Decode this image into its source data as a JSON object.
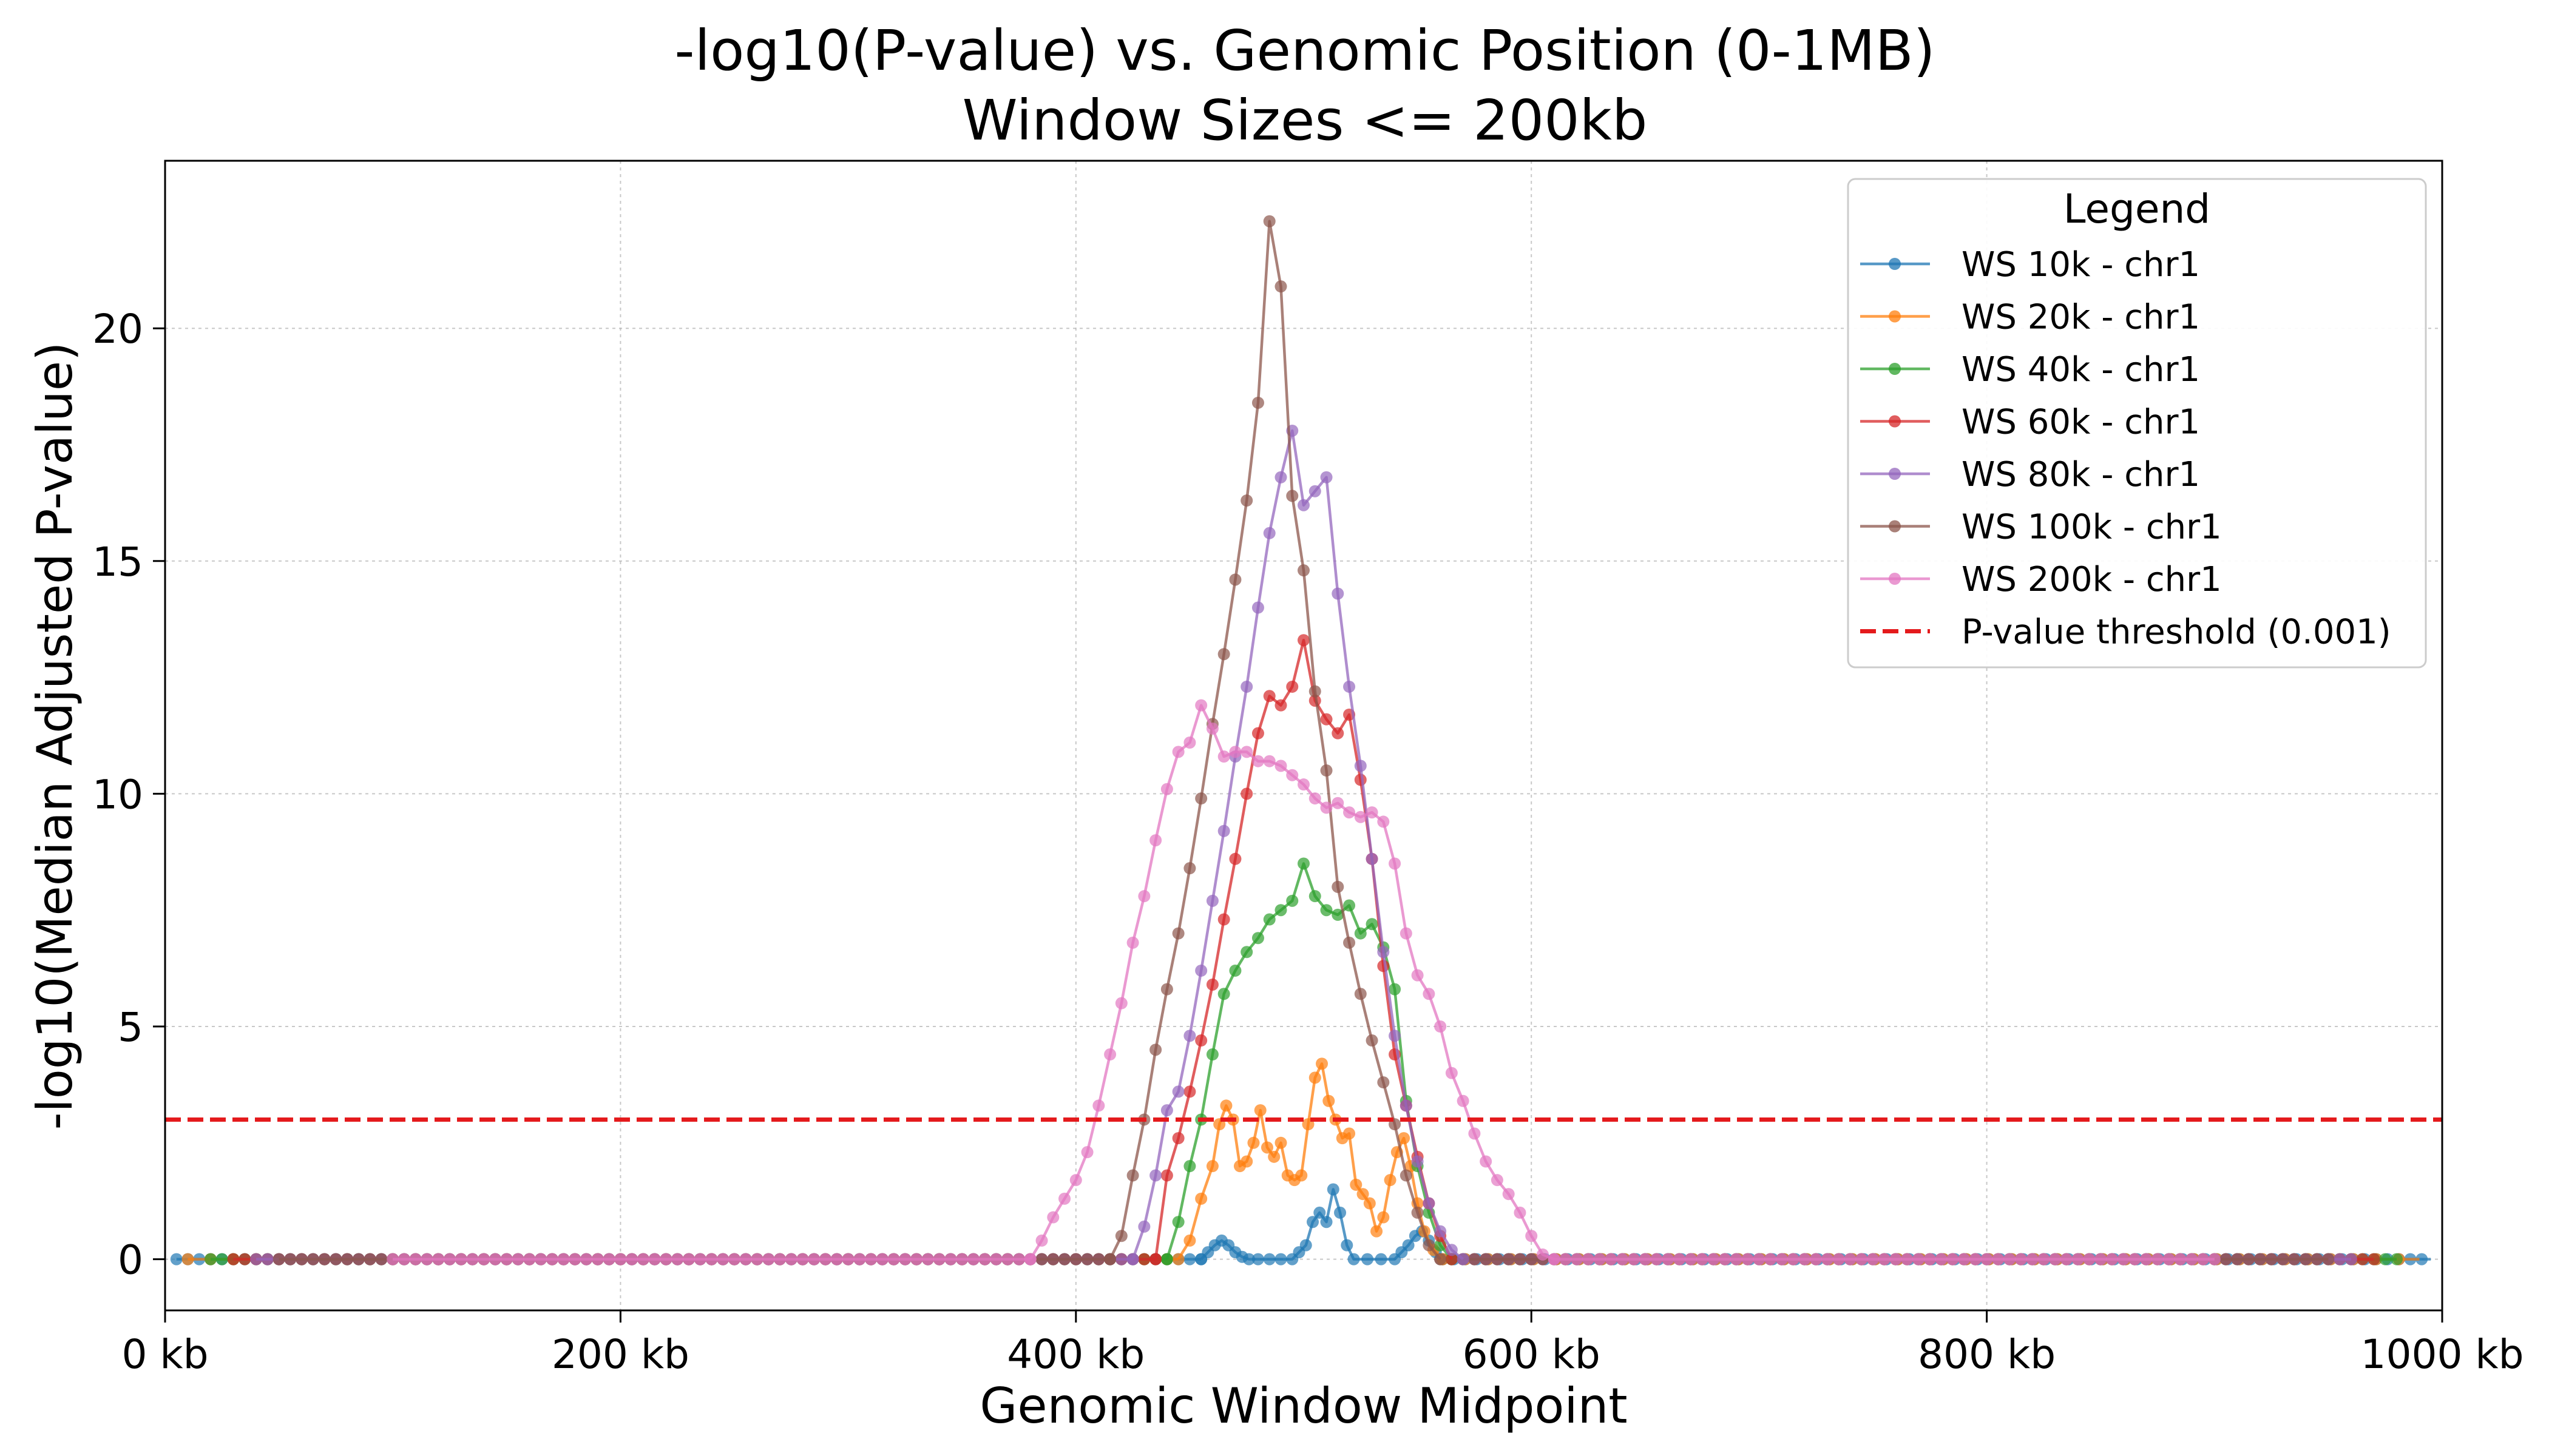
{
  "chart_data": {
    "type": "line",
    "title": "-log10(P-value) vs. Genomic Position (0-1MB)",
    "subtitle": "Window Sizes <= 200kb",
    "xlabel": "Genomic Window Midpoint",
    "ylabel": "-log10(Median Adjusted P-value)",
    "xlim": [
      0,
      1000
    ],
    "ylim": [
      -1.1,
      23.6
    ],
    "x_unit": "kb",
    "x_ticks": [
      0,
      200,
      400,
      600,
      800,
      1000
    ],
    "x_tick_labels": [
      "0 kb",
      "200 kb",
      "400 kb",
      "600 kb",
      "800 kb",
      "1000 kb"
    ],
    "y_ticks": [
      0,
      5,
      10,
      15,
      20
    ],
    "y_tick_labels": [
      "0",
      "5",
      "10",
      "15",
      "20"
    ],
    "grid": true,
    "legend": {
      "title": "Legend",
      "position": "top-right"
    },
    "threshold": {
      "name": "P-value threshold (0.001)",
      "y": 3,
      "color": "#e41a1c",
      "style": "dashed"
    },
    "series": [
      {
        "name": "WS 10k - chr1",
        "color": "#1f77b4",
        "window_kb": 10,
        "points": [
          [
            455,
            0
          ],
          [
            458,
            0.15
          ],
          [
            461,
            0.3
          ],
          [
            464,
            0.4
          ],
          [
            467,
            0.3
          ],
          [
            470,
            0.15
          ],
          [
            473,
            0.05
          ],
          [
            476,
            0
          ],
          [
            480,
            0
          ],
          [
            485,
            0
          ],
          [
            490,
            0
          ],
          [
            495,
            0
          ],
          [
            498,
            0.15
          ],
          [
            501,
            0.3
          ],
          [
            504,
            0.8
          ],
          [
            507,
            1.0
          ],
          [
            510,
            0.8
          ],
          [
            513,
            1.5
          ],
          [
            516,
            1.0
          ],
          [
            519,
            0.3
          ],
          [
            522,
            0
          ],
          [
            528,
            0
          ],
          [
            534,
            0
          ],
          [
            540,
            0
          ],
          [
            543,
            0.15
          ],
          [
            546,
            0.3
          ],
          [
            549,
            0.5
          ],
          [
            552,
            0.6
          ],
          [
            555,
            0.4
          ],
          [
            558,
            0.15
          ],
          [
            561,
            0
          ]
        ]
      },
      {
        "name": "WS 20k - chr1",
        "color": "#ff7f0e",
        "window_kb": 20,
        "points": [
          [
            445,
            0
          ],
          [
            450,
            0.4
          ],
          [
            455,
            1.3
          ],
          [
            460,
            2.0
          ],
          [
            463,
            2.9
          ],
          [
            466,
            3.3
          ],
          [
            469,
            3.0
          ],
          [
            472,
            2.0
          ],
          [
            475,
            2.1
          ],
          [
            478,
            2.5
          ],
          [
            481,
            3.2
          ],
          [
            484,
            2.4
          ],
          [
            487,
            2.2
          ],
          [
            490,
            2.5
          ],
          [
            493,
            1.8
          ],
          [
            496,
            1.7
          ],
          [
            499,
            1.8
          ],
          [
            502,
            2.9
          ],
          [
            505,
            3.9
          ],
          [
            508,
            4.2
          ],
          [
            511,
            3.4
          ],
          [
            514,
            3.0
          ],
          [
            517,
            2.6
          ],
          [
            520,
            2.7
          ],
          [
            523,
            1.6
          ],
          [
            526,
            1.4
          ],
          [
            529,
            1.2
          ],
          [
            532,
            0.6
          ],
          [
            535,
            0.9
          ],
          [
            538,
            1.7
          ],
          [
            541,
            2.3
          ],
          [
            544,
            2.6
          ],
          [
            547,
            2.0
          ],
          [
            550,
            1.2
          ],
          [
            553,
            0.6
          ],
          [
            557,
            0.2
          ],
          [
            561,
            0
          ]
        ]
      },
      {
        "name": "WS 40k - chr1",
        "color": "#2ca02c",
        "window_kb": 40,
        "points": [
          [
            440,
            0
          ],
          [
            445,
            0.8
          ],
          [
            450,
            2.0
          ],
          [
            455,
            3.0
          ],
          [
            460,
            4.4
          ],
          [
            465,
            5.7
          ],
          [
            470,
            6.2
          ],
          [
            475,
            6.6
          ],
          [
            480,
            6.9
          ],
          [
            485,
            7.3
          ],
          [
            490,
            7.5
          ],
          [
            495,
            7.7
          ],
          [
            500,
            8.5
          ],
          [
            505,
            7.8
          ],
          [
            510,
            7.5
          ],
          [
            515,
            7.4
          ],
          [
            520,
            7.6
          ],
          [
            525,
            7.0
          ],
          [
            530,
            7.2
          ],
          [
            535,
            6.7
          ],
          [
            540,
            5.8
          ],
          [
            545,
            3.4
          ],
          [
            550,
            2.0
          ],
          [
            555,
            1.0
          ],
          [
            560,
            0.3
          ],
          [
            565,
            0
          ]
        ]
      },
      {
        "name": "WS 60k - chr1",
        "color": "#d62728",
        "window_kb": 60,
        "points": [
          [
            435,
            0
          ],
          [
            440,
            1.8
          ],
          [
            445,
            2.6
          ],
          [
            450,
            3.6
          ],
          [
            455,
            4.7
          ],
          [
            460,
            5.9
          ],
          [
            465,
            7.3
          ],
          [
            470,
            8.6
          ],
          [
            475,
            10.0
          ],
          [
            480,
            11.3
          ],
          [
            485,
            12.1
          ],
          [
            490,
            11.9
          ],
          [
            495,
            12.3
          ],
          [
            500,
            13.3
          ],
          [
            505,
            12.0
          ],
          [
            510,
            11.6
          ],
          [
            515,
            11.3
          ],
          [
            520,
            11.7
          ],
          [
            525,
            10.3
          ],
          [
            530,
            8.6
          ],
          [
            535,
            6.3
          ],
          [
            540,
            4.4
          ],
          [
            545,
            3.3
          ],
          [
            550,
            2.2
          ],
          [
            555,
            1.2
          ],
          [
            560,
            0.5
          ],
          [
            565,
            0
          ]
        ]
      },
      {
        "name": "WS 80k - chr1",
        "color": "#9467bd",
        "window_kb": 80,
        "points": [
          [
            425,
            0
          ],
          [
            430,
            0.7
          ],
          [
            435,
            1.8
          ],
          [
            440,
            3.2
          ],
          [
            445,
            3.6
          ],
          [
            450,
            4.8
          ],
          [
            455,
            6.2
          ],
          [
            460,
            7.7
          ],
          [
            465,
            9.2
          ],
          [
            470,
            10.8
          ],
          [
            475,
            12.3
          ],
          [
            480,
            14.0
          ],
          [
            485,
            15.6
          ],
          [
            490,
            16.8
          ],
          [
            495,
            17.8
          ],
          [
            500,
            16.2
          ],
          [
            505,
            16.5
          ],
          [
            510,
            16.8
          ],
          [
            515,
            14.3
          ],
          [
            520,
            12.3
          ],
          [
            525,
            10.6
          ],
          [
            530,
            8.6
          ],
          [
            535,
            6.6
          ],
          [
            540,
            4.8
          ],
          [
            545,
            3.3
          ],
          [
            550,
            2.1
          ],
          [
            555,
            1.2
          ],
          [
            560,
            0.6
          ],
          [
            565,
            0.2
          ],
          [
            570,
            0
          ]
        ]
      },
      {
        "name": "WS 100k - chr1",
        "color": "#8c564b",
        "window_kb": 100,
        "points": [
          [
            415,
            0
          ],
          [
            420,
            0.5
          ],
          [
            425,
            1.8
          ],
          [
            430,
            3.0
          ],
          [
            435,
            4.5
          ],
          [
            440,
            5.8
          ],
          [
            445,
            7.0
          ],
          [
            450,
            8.4
          ],
          [
            455,
            9.9
          ],
          [
            460,
            11.5
          ],
          [
            465,
            13.0
          ],
          [
            470,
            14.6
          ],
          [
            475,
            16.3
          ],
          [
            480,
            18.4
          ],
          [
            485,
            22.3
          ],
          [
            490,
            20.9
          ],
          [
            495,
            16.4
          ],
          [
            500,
            14.8
          ],
          [
            505,
            12.2
          ],
          [
            510,
            10.5
          ],
          [
            515,
            8.0
          ],
          [
            520,
            6.8
          ],
          [
            525,
            5.7
          ],
          [
            530,
            4.7
          ],
          [
            535,
            3.8
          ],
          [
            540,
            2.9
          ],
          [
            545,
            1.8
          ],
          [
            550,
            1.0
          ],
          [
            555,
            0.3
          ],
          [
            560,
            0
          ]
        ]
      },
      {
        "name": "WS 200k - chr1",
        "color": "#e377c2",
        "window_kb": 200,
        "points": [
          [
            380,
            0
          ],
          [
            385,
            0.4
          ],
          [
            390,
            0.9
          ],
          [
            395,
            1.3
          ],
          [
            400,
            1.7
          ],
          [
            405,
            2.3
          ],
          [
            410,
            3.3
          ],
          [
            415,
            4.4
          ],
          [
            420,
            5.5
          ],
          [
            425,
            6.8
          ],
          [
            430,
            7.8
          ],
          [
            435,
            9.0
          ],
          [
            440,
            10.1
          ],
          [
            445,
            10.9
          ],
          [
            450,
            11.1
          ],
          [
            455,
            11.9
          ],
          [
            460,
            11.4
          ],
          [
            465,
            10.8
          ],
          [
            470,
            10.9
          ],
          [
            475,
            10.9
          ],
          [
            480,
            10.7
          ],
          [
            485,
            10.7
          ],
          [
            490,
            10.6
          ],
          [
            495,
            10.4
          ],
          [
            500,
            10.2
          ],
          [
            505,
            9.9
          ],
          [
            510,
            9.7
          ],
          [
            515,
            9.8
          ],
          [
            520,
            9.6
          ],
          [
            525,
            9.5
          ],
          [
            530,
            9.6
          ],
          [
            535,
            9.4
          ],
          [
            540,
            8.5
          ],
          [
            545,
            7.0
          ],
          [
            550,
            6.1
          ],
          [
            555,
            5.7
          ],
          [
            560,
            5.0
          ],
          [
            565,
            4.0
          ],
          [
            570,
            3.4
          ],
          [
            575,
            2.7
          ],
          [
            580,
            2.1
          ],
          [
            585,
            1.7
          ],
          [
            590,
            1.4
          ],
          [
            595,
            1.0
          ],
          [
            600,
            0.5
          ],
          [
            605,
            0.1
          ],
          [
            610,
            0
          ]
        ]
      }
    ],
    "baseline_extents_kb": {
      "WS 10k - chr1": [
        5,
        995
      ],
      "WS 20k - chr1": [
        10,
        990
      ],
      "WS 40k - chr1": [
        20,
        980
      ],
      "WS 60k - chr1": [
        30,
        970
      ],
      "WS 80k - chr1": [
        40,
        960
      ],
      "WS 100k - chr1": [
        50,
        950
      ],
      "WS 200k - chr1": [
        100,
        900
      ]
    }
  }
}
